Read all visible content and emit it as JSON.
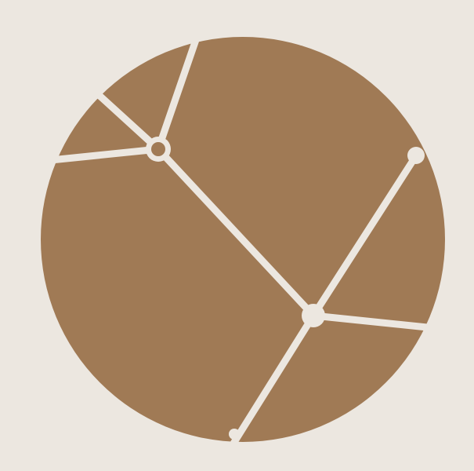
{
  "colors": {
    "background": "#ece7e0",
    "disc": "#a07a55",
    "lines": "#ece7e0"
  },
  "graphic": {
    "icon": "cracked-disc-network-icon"
  }
}
